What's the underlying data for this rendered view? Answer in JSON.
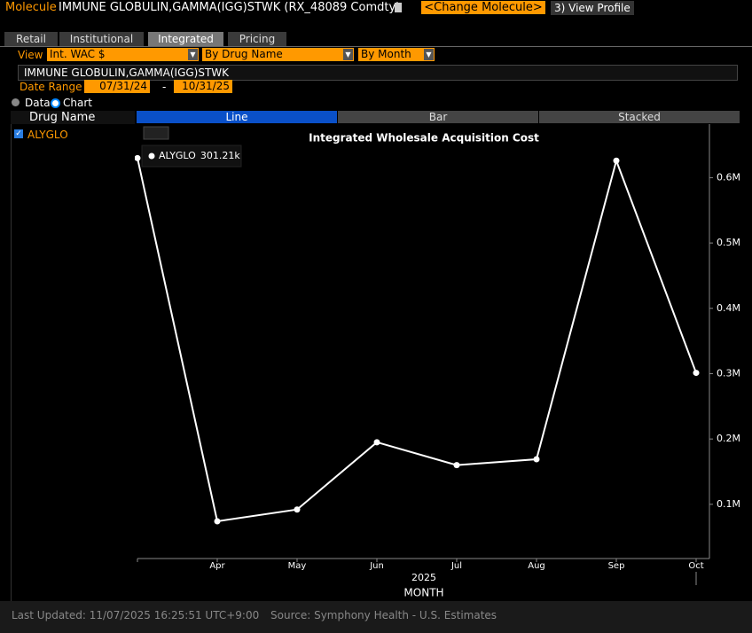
{
  "header": {
    "label": "Molecule",
    "title": "IMMUNE GLOBULIN,GAMMA(IGG)STWK (RX_48089 Comdty)",
    "change_button": "<Change Molecule>",
    "profile_key": "3",
    "profile_button": "View Profile"
  },
  "tabs": [
    "Retail",
    "Institutional",
    "Integrated",
    "Pricing"
  ],
  "controls": {
    "view_label": "View",
    "view": "Int. WAC $",
    "group": "By Drug Name",
    "period": "By Month"
  },
  "molecule_field": "IMMUNE GLOBULIN,GAMMA(IGG)STWK",
  "date_range": {
    "label": "Date Range",
    "start": "07/31/24",
    "separator": "-",
    "end": "10/31/25"
  },
  "mode": {
    "data": "Data",
    "chart": "Chart"
  },
  "sidebar": {
    "header": "Drug Name",
    "drugs": [
      "ALYGLO"
    ]
  },
  "chart_tabs": [
    "Line",
    "Bar",
    "Stacked"
  ],
  "chart_data": {
    "type": "line",
    "title": "Integrated Wholesale Acquisition Cost",
    "categories": [
      null,
      "Apr",
      "May",
      "Jun",
      "Jul",
      "Aug",
      "Sep",
      "Oct"
    ],
    "year_label": "2025",
    "x_label": "MONTH",
    "series": [
      {
        "name": "ALYGLO",
        "color": "#ffffff",
        "values": [
          630000,
          74000,
          92000,
          195000,
          160000,
          169000,
          626000,
          301210
        ],
        "value_labels": [
          null,
          null,
          null,
          null,
          null,
          null,
          null,
          "301.21k"
        ]
      }
    ],
    "ylim": [
      17000,
      682000
    ],
    "yticks": [
      {
        "value": 100000,
        "label": "0.1M"
      },
      {
        "value": 200000,
        "label": "0.2M"
      },
      {
        "value": 300000,
        "label": "0.3M"
      },
      {
        "value": 400000,
        "label": "0.4M"
      },
      {
        "value": 500000,
        "label": "0.5M"
      },
      {
        "value": 600000,
        "label": "0.6M"
      }
    ]
  },
  "footer": {
    "updated": "Last Updated: 11/07/2025 16:25:51 UTC+9:00",
    "source": "Source: Symphony Health - U.S. Estimates"
  }
}
